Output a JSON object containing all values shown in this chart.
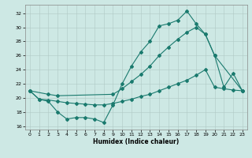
{
  "background_color": "#cde8e4",
  "grid_color": "#b0c8c4",
  "line_color": "#1a7a6e",
  "xlabel": "Humidex (Indice chaleur)",
  "yticks": [
    16,
    18,
    20,
    22,
    24,
    26,
    28,
    30,
    32
  ],
  "xticks": [
    0,
    1,
    2,
    3,
    4,
    5,
    6,
    7,
    8,
    9,
    10,
    11,
    12,
    13,
    14,
    15,
    16,
    17,
    18,
    19,
    20,
    21,
    22,
    23
  ],
  "xlim": [
    -0.5,
    23.5
  ],
  "ylim": [
    15.5,
    33.2
  ],
  "curve1_x": [
    0,
    1,
    2,
    3,
    4,
    5,
    6,
    7,
    8,
    9,
    10,
    11,
    12,
    13,
    14,
    15,
    16,
    17,
    18,
    19,
    20,
    21,
    22,
    23
  ],
  "curve1_y": [
    21.0,
    19.8,
    19.5,
    18.0,
    17.0,
    17.2,
    17.2,
    17.0,
    16.5,
    19.0,
    22.0,
    24.5,
    26.5,
    28.0,
    30.2,
    30.5,
    31.0,
    32.3,
    30.5,
    29.0,
    26.0,
    21.5,
    23.5,
    21.0
  ],
  "curve2_x": [
    0,
    2,
    3,
    9,
    10,
    11,
    12,
    13,
    14,
    15,
    16,
    17,
    18,
    19,
    20,
    23
  ],
  "curve2_y": [
    21.0,
    20.5,
    20.3,
    20.5,
    21.3,
    22.3,
    23.3,
    24.5,
    26.0,
    27.2,
    28.3,
    29.3,
    30.0,
    29.0,
    26.0,
    21.0
  ],
  "curve3_x": [
    0,
    1,
    2,
    3,
    4,
    5,
    6,
    7,
    8,
    9,
    10,
    11,
    12,
    13,
    14,
    15,
    16,
    17,
    18,
    19,
    20,
    21,
    22,
    23
  ],
  "curve3_y": [
    21.0,
    19.8,
    19.7,
    19.5,
    19.3,
    19.2,
    19.1,
    19.0,
    19.0,
    19.2,
    19.5,
    19.8,
    20.2,
    20.5,
    21.0,
    21.5,
    22.0,
    22.5,
    23.2,
    24.0,
    21.5,
    21.3,
    21.1,
    21.0
  ]
}
